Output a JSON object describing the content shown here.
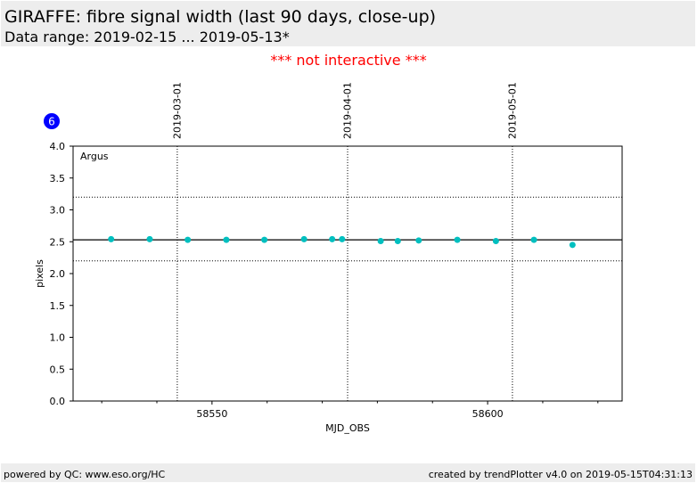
{
  "header": {
    "title": "GIRAFFE: fibre signal width (last 90 days, close-up)",
    "subtitle": "Data range: 2019-02-15 ... 2019-05-13*"
  },
  "notice": "*** not interactive ***",
  "badge": "6",
  "footer": {
    "left": "powered by QC: www.eso.org/HC",
    "right": "created by trendPlotter v4.0 on 2019-05-15T04:31:13"
  },
  "colors": {
    "points": "#00bfbf",
    "badge": "#0000ff",
    "notice": "#ff0000"
  },
  "chart_data": {
    "type": "scatter",
    "annotation": "Argus",
    "xlabel": "MJD_OBS",
    "ylabel": "pixels",
    "xlim": [
      58524.8,
      58624.4
    ],
    "ylim": [
      0,
      4
    ],
    "xticks": [
      58550,
      58600
    ],
    "xminor_step": 10,
    "yticks": [
      "0.0",
      "0.5",
      "1.0",
      "1.5",
      "2.0",
      "2.5",
      "3.0",
      "3.5",
      "4.0"
    ],
    "date_markers": [
      {
        "label": "2019-03-01",
        "mjd": 58543.7
      },
      {
        "label": "2019-04-01",
        "mjd": 58574.6
      },
      {
        "label": "2019-05-01",
        "mjd": 58604.5
      }
    ],
    "mean_line": 2.53,
    "limit_lines": [
      3.2,
      2.2
    ],
    "points": [
      {
        "x": 58531.7,
        "y": 2.54
      },
      {
        "x": 58538.7,
        "y": 2.54
      },
      {
        "x": 58545.6,
        "y": 2.53
      },
      {
        "x": 58552.6,
        "y": 2.53
      },
      {
        "x": 58559.5,
        "y": 2.53
      },
      {
        "x": 58566.7,
        "y": 2.54
      },
      {
        "x": 58571.8,
        "y": 2.54
      },
      {
        "x": 58573.6,
        "y": 2.54
      },
      {
        "x": 58580.6,
        "y": 2.51
      },
      {
        "x": 58583.7,
        "y": 2.51
      },
      {
        "x": 58587.5,
        "y": 2.52
      },
      {
        "x": 58594.5,
        "y": 2.53
      },
      {
        "x": 58601.5,
        "y": 2.51
      },
      {
        "x": 58608.4,
        "y": 2.53
      },
      {
        "x": 58615.4,
        "y": 2.45
      }
    ]
  }
}
